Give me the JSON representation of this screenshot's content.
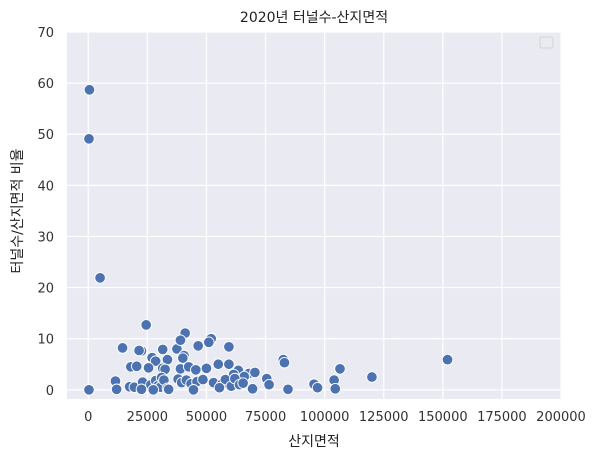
{
  "chart_data": {
    "type": "scatter",
    "title": "2020년 터널수-산지면적",
    "xlabel": "산지면적",
    "ylabel": "터널수/산지면적 비율",
    "xlim": [
      -9000,
      200000
    ],
    "ylim": [
      -1.8,
      70
    ],
    "xticks": [
      0,
      25000,
      50000,
      75000,
      100000,
      125000,
      150000,
      175000,
      200000
    ],
    "yticks": [
      0,
      10,
      20,
      30,
      40,
      50,
      60,
      70
    ],
    "grid": true,
    "legend": "top-right",
    "style": "seaborn-darkgrid",
    "colors": {
      "background": "#EAEAF2",
      "point": "#4C72B0",
      "grid": "#FFFFFF"
    },
    "points": [
      [
        500,
        58.7
      ],
      [
        300,
        49.1
      ],
      [
        300,
        0
      ],
      [
        5000,
        21.9
      ],
      [
        24500,
        12.7
      ],
      [
        41000,
        11.1
      ],
      [
        14500,
        8.2
      ],
      [
        22500,
        7.6
      ],
      [
        21500,
        7.7
      ],
      [
        31500,
        7.9
      ],
      [
        37500,
        8.0
      ],
      [
        52000,
        10.0
      ],
      [
        51000,
        9.3
      ],
      [
        39000,
        9.7
      ],
      [
        46500,
        8.6
      ],
      [
        59500,
        8.4
      ],
      [
        40500,
        6.7
      ],
      [
        40000,
        6.2
      ],
      [
        33500,
        5.9
      ],
      [
        27000,
        6.3
      ],
      [
        28500,
        5.6
      ],
      [
        18000,
        4.5
      ],
      [
        20500,
        4.6
      ],
      [
        25500,
        4.3
      ],
      [
        31500,
        4.2
      ],
      [
        32500,
        4.0
      ],
      [
        39000,
        4.1
      ],
      [
        42500,
        4.5
      ],
      [
        45500,
        3.9
      ],
      [
        50000,
        4.2
      ],
      [
        55000,
        5.0
      ],
      [
        59500,
        5.0
      ],
      [
        63500,
        3.8
      ],
      [
        68000,
        3.2
      ],
      [
        70500,
        3.4
      ],
      [
        61500,
        3.0
      ],
      [
        66000,
        2.6
      ],
      [
        75500,
        2.2
      ],
      [
        82500,
        5.9
      ],
      [
        83000,
        5.3
      ],
      [
        106500,
        4.1
      ],
      [
        120000,
        2.5
      ],
      [
        152000,
        5.9
      ],
      [
        11500,
        1.7
      ],
      [
        17500,
        0.6
      ],
      [
        19500,
        0.5
      ],
      [
        23000,
        1.5
      ],
      [
        26500,
        1.0
      ],
      [
        28500,
        1.8
      ],
      [
        29500,
        0.8
      ],
      [
        30500,
        0.5
      ],
      [
        31000,
        2.4
      ],
      [
        32000,
        1.9
      ],
      [
        33500,
        0.3
      ],
      [
        38000,
        2.1
      ],
      [
        39500,
        1.4
      ],
      [
        41500,
        1.9
      ],
      [
        43500,
        1.2
      ],
      [
        46000,
        1.6
      ],
      [
        48500,
        2.0
      ],
      [
        53000,
        1.4
      ],
      [
        56500,
        1.1
      ],
      [
        58000,
        2.0
      ],
      [
        60500,
        0.7
      ],
      [
        62000,
        2.2
      ],
      [
        64000,
        1.0
      ],
      [
        65500,
        1.3
      ],
      [
        69500,
        0.2
      ],
      [
        76500,
        1.0
      ],
      [
        84500,
        0.1
      ],
      [
        95500,
        1.1
      ],
      [
        97000,
        0.4
      ],
      [
        104000,
        1.9
      ],
      [
        104500,
        0.2
      ],
      [
        12000,
        0.1
      ],
      [
        22500,
        0.1
      ],
      [
        27500,
        0.0
      ],
      [
        34000,
        0.1
      ],
      [
        44500,
        0.0
      ],
      [
        55500,
        0.4
      ]
    ]
  }
}
